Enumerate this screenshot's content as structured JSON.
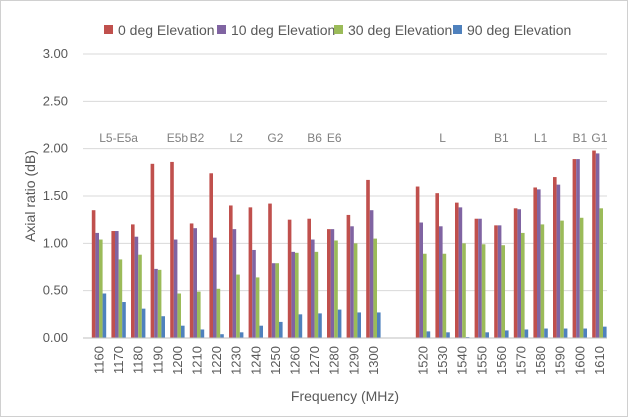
{
  "chart_data": {
    "type": "bar",
    "xlabel": "Frequency (MHz)",
    "ylabel": "Axial ratio (dB)",
    "ylim": [
      0,
      3
    ],
    "yticks": [
      "0.00",
      "0.50",
      "1.00",
      "1.50",
      "2.00",
      "2.50",
      "3.00"
    ],
    "grid": true,
    "legend_position": "top",
    "categories": [
      "1160",
      "1170",
      "1180",
      "1190",
      "1200",
      "1210",
      "1220",
      "1230",
      "1240",
      "1250",
      "1260",
      "1270",
      "1280",
      "1290",
      "1300",
      "1520",
      "1530",
      "1540",
      "1550",
      "1560",
      "1570",
      "1580",
      "1590",
      "1600",
      "1610"
    ],
    "series": [
      {
        "name": "0 deg Elevation",
        "color": "#c0504d",
        "values": [
          1.35,
          1.13,
          1.2,
          1.84,
          1.86,
          1.21,
          1.74,
          1.4,
          1.38,
          1.42,
          1.25,
          1.26,
          1.15,
          1.3,
          1.67,
          1.6,
          1.53,
          1.43,
          1.26,
          1.19,
          1.37,
          1.59,
          1.7,
          1.89,
          1.98
        ]
      },
      {
        "name": "10 deg Elevation",
        "color": "#8064a2",
        "values": [
          1.11,
          1.13,
          1.07,
          0.73,
          1.04,
          1.16,
          1.06,
          1.15,
          0.93,
          0.79,
          0.91,
          1.04,
          1.15,
          1.18,
          1.35,
          1.22,
          1.18,
          1.38,
          1.26,
          1.19,
          1.36,
          1.57,
          1.62,
          1.89,
          1.95
        ]
      },
      {
        "name": "30 deg Elevation",
        "color": "#9bbb59",
        "values": [
          1.04,
          0.83,
          0.88,
          0.72,
          0.47,
          0.49,
          0.52,
          0.67,
          0.64,
          0.79,
          0.9,
          0.91,
          1.03,
          1.0,
          1.05,
          0.89,
          0.89,
          1.0,
          0.99,
          0.98,
          1.11,
          1.2,
          1.24,
          1.27,
          1.37
        ]
      },
      {
        "name": "90 deg Elevation",
        "color": "#4f81bd",
        "values": [
          0.47,
          0.38,
          0.31,
          0.23,
          0.13,
          0.09,
          0.04,
          0.06,
          0.13,
          0.17,
          0.25,
          0.26,
          0.3,
          0.27,
          0.27,
          0.07,
          0.06,
          0.01,
          0.06,
          0.08,
          0.09,
          0.1,
          0.1,
          0.1,
          0.12
        ]
      }
    ],
    "annotations": [
      {
        "text": "L5-E5a",
        "x": 1170
      },
      {
        "text": "E5b",
        "x": 1200
      },
      {
        "text": "B2",
        "x": 1210
      },
      {
        "text": "L2",
        "x": 1230
      },
      {
        "text": "G2",
        "x": 1250
      },
      {
        "text": "B6",
        "x": 1270
      },
      {
        "text": "E6",
        "x": 1280
      },
      {
        "text": "L",
        "x": 1530
      },
      {
        "text": "B1",
        "x": 1560
      },
      {
        "text": "L1",
        "x": 1580
      },
      {
        "text": "B1",
        "x": 1600
      },
      {
        "text": "G1",
        "x": 1610
      }
    ]
  }
}
